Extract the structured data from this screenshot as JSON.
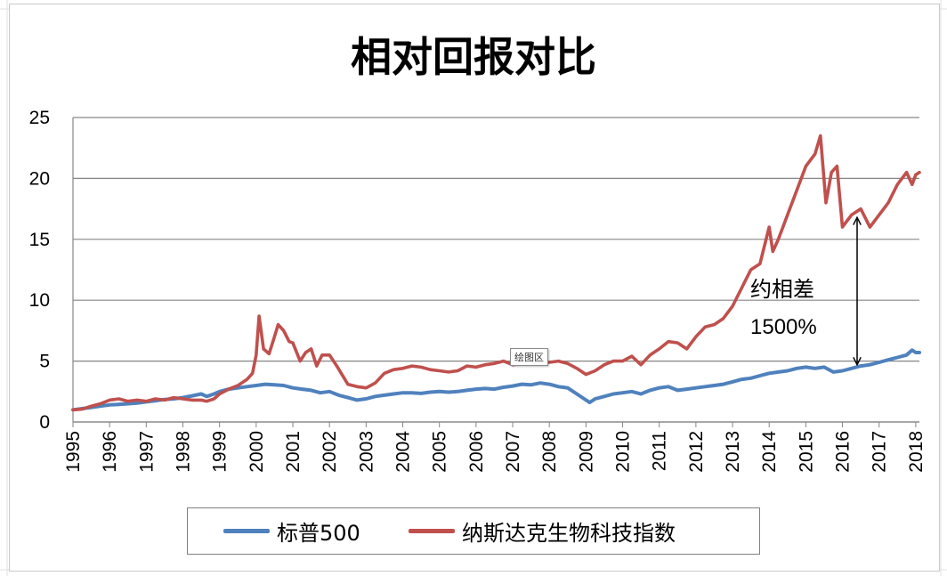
{
  "chart_data": {
    "type": "line",
    "title": "相对回报对比",
    "xlabel": "",
    "ylabel": "",
    "x_ticks": [
      "1995",
      "1996",
      "1997",
      "1998",
      "1999",
      "2000",
      "2001",
      "2002",
      "2003",
      "2004",
      "2005",
      "2006",
      "2007",
      "2008",
      "2009",
      "2010",
      "2011",
      "2012",
      "2013",
      "2014",
      "2015",
      "2016",
      "2017",
      "2018"
    ],
    "y_ticks": [
      0,
      5,
      10,
      15,
      20,
      25
    ],
    "xlim": [
      1995,
      2018.1
    ],
    "ylim": [
      0,
      25
    ],
    "grid": "horizontal",
    "legend_position": "bottom",
    "series": [
      {
        "name": "标普500",
        "color": "#4f81bd",
        "x": [
          1995,
          1995.25,
          1995.5,
          1995.75,
          1996,
          1996.25,
          1996.5,
          1996.75,
          1997,
          1997.25,
          1997.5,
          1997.75,
          1998,
          1998.25,
          1998.5,
          1998.65,
          1998.85,
          1999,
          1999.25,
          1999.5,
          1999.75,
          2000,
          2000.25,
          2000.5,
          2000.75,
          2001,
          2001.25,
          2001.5,
          2001.75,
          2002,
          2002.25,
          2002.5,
          2002.75,
          2003,
          2003.25,
          2003.5,
          2003.75,
          2004,
          2004.25,
          2004.5,
          2004.75,
          2005,
          2005.25,
          2005.5,
          2005.75,
          2006,
          2006.25,
          2006.5,
          2006.75,
          2007,
          2007.25,
          2007.5,
          2007.75,
          2008,
          2008.25,
          2008.5,
          2008.75,
          2009,
          2009.1,
          2009.25,
          2009.5,
          2009.75,
          2010,
          2010.25,
          2010.5,
          2010.75,
          2011,
          2011.25,
          2011.5,
          2011.75,
          2012,
          2012.25,
          2012.5,
          2012.75,
          2013,
          2013.25,
          2013.5,
          2013.75,
          2014,
          2014.25,
          2014.5,
          2014.75,
          2015,
          2015.25,
          2015.5,
          2015.75,
          2016,
          2016.25,
          2016.5,
          2016.75,
          2017,
          2017.25,
          2017.5,
          2017.75,
          2017.9,
          2018,
          2018.1
        ],
        "values": [
          1.0,
          1.1,
          1.2,
          1.3,
          1.4,
          1.45,
          1.5,
          1.55,
          1.65,
          1.75,
          1.85,
          1.9,
          2.0,
          2.15,
          2.3,
          2.1,
          2.3,
          2.5,
          2.7,
          2.8,
          2.9,
          3.0,
          3.1,
          3.05,
          3.0,
          2.8,
          2.7,
          2.6,
          2.4,
          2.5,
          2.2,
          2.0,
          1.8,
          1.9,
          2.1,
          2.2,
          2.3,
          2.4,
          2.4,
          2.35,
          2.45,
          2.5,
          2.45,
          2.5,
          2.6,
          2.7,
          2.75,
          2.7,
          2.85,
          2.95,
          3.1,
          3.05,
          3.2,
          3.1,
          2.9,
          2.8,
          2.3,
          1.8,
          1.6,
          1.9,
          2.1,
          2.3,
          2.4,
          2.5,
          2.3,
          2.6,
          2.8,
          2.9,
          2.6,
          2.7,
          2.8,
          2.9,
          3.0,
          3.1,
          3.3,
          3.5,
          3.6,
          3.8,
          4.0,
          4.1,
          4.2,
          4.4,
          4.5,
          4.4,
          4.5,
          4.1,
          4.2,
          4.4,
          4.6,
          4.7,
          4.9,
          5.1,
          5.3,
          5.5,
          5.9,
          5.7,
          5.7
        ]
      },
      {
        "name": "纳斯达克生物科技指数",
        "color": "#c0504d",
        "x": [
          1995,
          1995.25,
          1995.5,
          1995.75,
          1996,
          1996.25,
          1996.5,
          1996.75,
          1997,
          1997.25,
          1997.5,
          1997.75,
          1998,
          1998.25,
          1998.5,
          1998.65,
          1998.85,
          1999,
          1999.25,
          1999.5,
          1999.75,
          1999.9,
          2000,
          2000.08,
          2000.2,
          2000.35,
          2000.5,
          2000.6,
          2000.75,
          2000.9,
          2001,
          2001.2,
          2001.35,
          2001.5,
          2001.65,
          2001.8,
          2002,
          2002.2,
          2002.5,
          2002.75,
          2003,
          2003.25,
          2003.5,
          2003.75,
          2004,
          2004.25,
          2004.5,
          2004.75,
          2005,
          2005.25,
          2005.5,
          2005.75,
          2006,
          2006.25,
          2006.5,
          2006.75,
          2007,
          2007.25,
          2007.5,
          2007.75,
          2008,
          2008.25,
          2008.5,
          2008.75,
          2009,
          2009.25,
          2009.5,
          2009.75,
          2010,
          2010.25,
          2010.5,
          2010.75,
          2011,
          2011.25,
          2011.5,
          2011.75,
          2012,
          2012.25,
          2012.5,
          2012.75,
          2013,
          2013.25,
          2013.5,
          2013.75,
          2014,
          2014.1,
          2014.25,
          2014.5,
          2014.75,
          2015,
          2015.25,
          2015.4,
          2015.55,
          2015.7,
          2015.85,
          2016,
          2016.12,
          2016.25,
          2016.5,
          2016.75,
          2017,
          2017.25,
          2017.5,
          2017.75,
          2017.9,
          2018,
          2018.1
        ],
        "values": [
          1.0,
          1.05,
          1.3,
          1.5,
          1.8,
          1.9,
          1.7,
          1.8,
          1.7,
          1.9,
          1.8,
          2.0,
          1.9,
          1.8,
          1.8,
          1.7,
          1.9,
          2.3,
          2.7,
          3.0,
          3.5,
          4.0,
          5.5,
          8.7,
          6.0,
          5.6,
          7.0,
          8.0,
          7.5,
          6.6,
          6.5,
          5.0,
          5.7,
          6.0,
          4.6,
          5.5,
          5.5,
          4.6,
          3.1,
          2.9,
          2.8,
          3.2,
          4.0,
          4.3,
          4.4,
          4.6,
          4.5,
          4.3,
          4.2,
          4.1,
          4.2,
          4.6,
          4.5,
          4.7,
          4.8,
          5.0,
          4.7,
          4.8,
          5.1,
          5.0,
          4.9,
          5.0,
          4.8,
          4.4,
          3.9,
          4.2,
          4.7,
          5.0,
          5.0,
          5.4,
          4.7,
          5.5,
          6.0,
          6.6,
          6.5,
          6.0,
          7.0,
          7.8,
          8.0,
          8.5,
          9.5,
          11.0,
          12.5,
          13.0,
          16.0,
          14.0,
          15.0,
          17.0,
          19.0,
          21.0,
          22.0,
          23.5,
          18.0,
          20.5,
          21.0,
          16.0,
          16.5,
          17.0,
          17.5,
          16.0,
          17.0,
          18.0,
          19.5,
          20.5,
          19.5,
          20.3,
          20.5
        ]
      }
    ]
  },
  "annotation": {
    "line1": "约相差",
    "line2": "1500%",
    "arrow_x": 2016.4,
    "arrow_top": 16.8,
    "arrow_bottom": 4.7
  },
  "tooltip": "绘图区",
  "legend": {
    "items": [
      {
        "label": "标普500",
        "color": "#4f81bd"
      },
      {
        "label": "纳斯达克生物科技指数",
        "color": "#c0504d"
      }
    ]
  },
  "colors": {
    "gridline": "#868686",
    "axis": "#868686",
    "sheet_grid": "#dcdcdc"
  }
}
